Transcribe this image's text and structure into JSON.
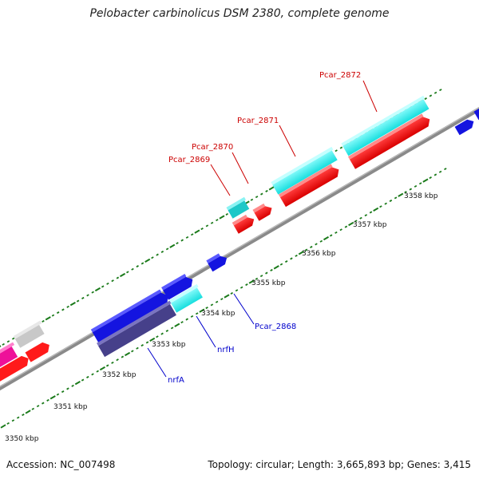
{
  "title": "Pelobacter carbinolicus DSM 2380, complete genome",
  "footer": {
    "accession": "Accession: NC_007498",
    "stats": "Topology: circular; Length: 3,665,893 bp; Genes: 3,415"
  },
  "colors": {
    "backbone": "#888888",
    "ticks": "#1a7a1a",
    "red_gene": "#ff1a1a",
    "cyan_gene": "#22eeee",
    "blue_gene": "#1010dd",
    "slate_gene": "#46408a",
    "magenta_gene": "#ee1199",
    "grey_gene": "#c8c8c8",
    "label_red": "#cc0000",
    "label_blue": "#0000cc"
  },
  "kbp_labels": [
    "3350 kbp",
    "3351 kbp",
    "3352 kbp",
    "3353 kbp",
    "3354 kbp",
    "3355 kbp",
    "3356 kbp",
    "3357 kbp",
    "3358 kbp"
  ],
  "gene_labels": {
    "top": [
      "Pcar_2872",
      "Pcar_2871",
      "Pcar_2870",
      "Pcar_2869"
    ],
    "bottom": [
      "Pcar_2868",
      "nrfH",
      "nrfA"
    ]
  }
}
